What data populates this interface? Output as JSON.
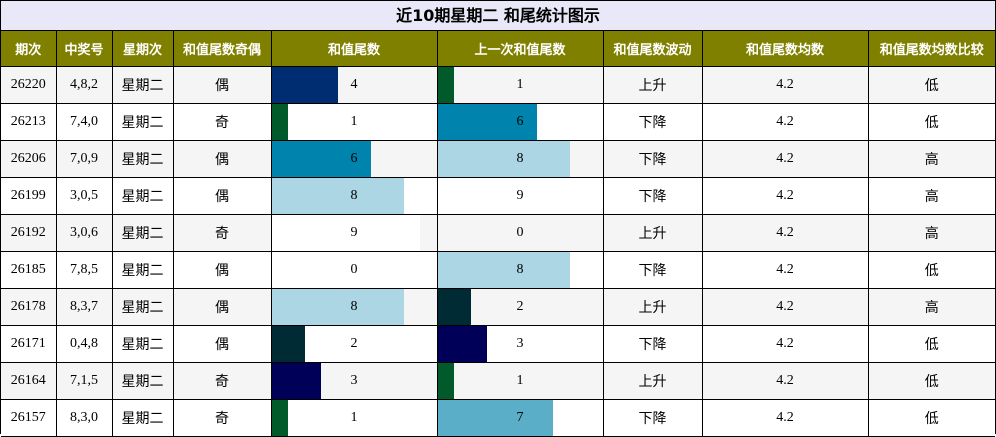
{
  "title": "近10期星期二 和尾统计图示",
  "columns": [
    "期次",
    "中奖号",
    "星期次",
    "和值尾数奇偶",
    "和值尾数",
    "上一次和值尾数",
    "和值尾数波动",
    "和值尾数均数",
    "和值尾数均数比较"
  ],
  "bar_colors": {
    "0": "#ffffff",
    "1": "#005a2a",
    "2": "#002a34",
    "3": "#000058",
    "4": "#002d72",
    "6": "#0084ae",
    "7": "#5aaec8",
    "8": "#add6e4",
    "9": "#ffffff"
  },
  "chart_data": {
    "type": "table",
    "bar_max": 10,
    "rows": [
      {
        "issue": "26220",
        "numbers": "4,8,2",
        "weekday": "星期二",
        "parity": "偶",
        "tail": 4,
        "prev_tail": 1,
        "trend": "上升",
        "avg": "4.2",
        "compare": "低"
      },
      {
        "issue": "26213",
        "numbers": "7,4,0",
        "weekday": "星期二",
        "parity": "奇",
        "tail": 1,
        "prev_tail": 6,
        "trend": "下降",
        "avg": "4.2",
        "compare": "低"
      },
      {
        "issue": "26206",
        "numbers": "7,0,9",
        "weekday": "星期二",
        "parity": "偶",
        "tail": 6,
        "prev_tail": 8,
        "trend": "下降",
        "avg": "4.2",
        "compare": "高"
      },
      {
        "issue": "26199",
        "numbers": "3,0,5",
        "weekday": "星期二",
        "parity": "偶",
        "tail": 8,
        "prev_tail": 9,
        "trend": "下降",
        "avg": "4.2",
        "compare": "高"
      },
      {
        "issue": "26192",
        "numbers": "3,0,6",
        "weekday": "星期二",
        "parity": "奇",
        "tail": 9,
        "prev_tail": 0,
        "trend": "上升",
        "avg": "4.2",
        "compare": "高"
      },
      {
        "issue": "26185",
        "numbers": "7,8,5",
        "weekday": "星期二",
        "parity": "偶",
        "tail": 0,
        "prev_tail": 8,
        "trend": "下降",
        "avg": "4.2",
        "compare": "低"
      },
      {
        "issue": "26178",
        "numbers": "8,3,7",
        "weekday": "星期二",
        "parity": "偶",
        "tail": 8,
        "prev_tail": 2,
        "trend": "上升",
        "avg": "4.2",
        "compare": "高"
      },
      {
        "issue": "26171",
        "numbers": "0,4,8",
        "weekday": "星期二",
        "parity": "偶",
        "tail": 2,
        "prev_tail": 3,
        "trend": "下降",
        "avg": "4.2",
        "compare": "低"
      },
      {
        "issue": "26164",
        "numbers": "7,1,5",
        "weekday": "星期二",
        "parity": "奇",
        "tail": 3,
        "prev_tail": 1,
        "trend": "上升",
        "avg": "4.2",
        "compare": "低"
      },
      {
        "issue": "26157",
        "numbers": "8,3,0",
        "weekday": "星期二",
        "parity": "奇",
        "tail": 1,
        "prev_tail": 7,
        "trend": "下降",
        "avg": "4.2",
        "compare": "低"
      }
    ]
  }
}
